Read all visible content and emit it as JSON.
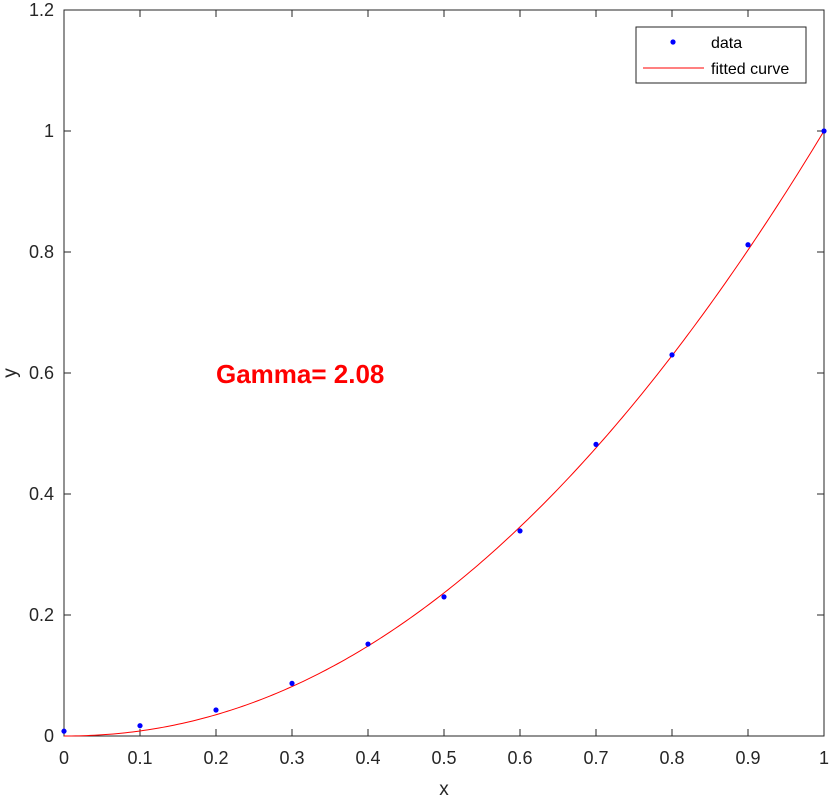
{
  "chart_data": {
    "type": "scatter",
    "title": "",
    "xlabel": "x",
    "ylabel": "y",
    "xlim": [
      0,
      1
    ],
    "ylim": [
      0,
      1.2
    ],
    "xticks": [
      "0",
      "0.1",
      "0.2",
      "0.3",
      "0.4",
      "0.5",
      "0.6",
      "0.7",
      "0.8",
      "0.9",
      "1"
    ],
    "yticks": [
      "0",
      "0.2",
      "0.4",
      "0.6",
      "0.8",
      "1",
      "1.2"
    ],
    "grid": false,
    "legend_position": "top-right",
    "annotation": "Gamma= 2.08",
    "gamma": 2.08,
    "series": [
      {
        "name": "data",
        "style": "points",
        "color": "#0000ff",
        "x": [
          0,
          0.1,
          0.2,
          0.3,
          0.4,
          0.5,
          0.6,
          0.7,
          0.8,
          0.9,
          1
        ],
        "y": [
          0.008,
          0.017,
          0.043,
          0.087,
          0.152,
          0.23,
          0.339,
          0.482,
          0.63,
          0.812,
          1.0
        ]
      },
      {
        "name": "fitted curve",
        "style": "line",
        "color": "#ff0000",
        "equation": "y = x^2.08"
      }
    ]
  }
}
